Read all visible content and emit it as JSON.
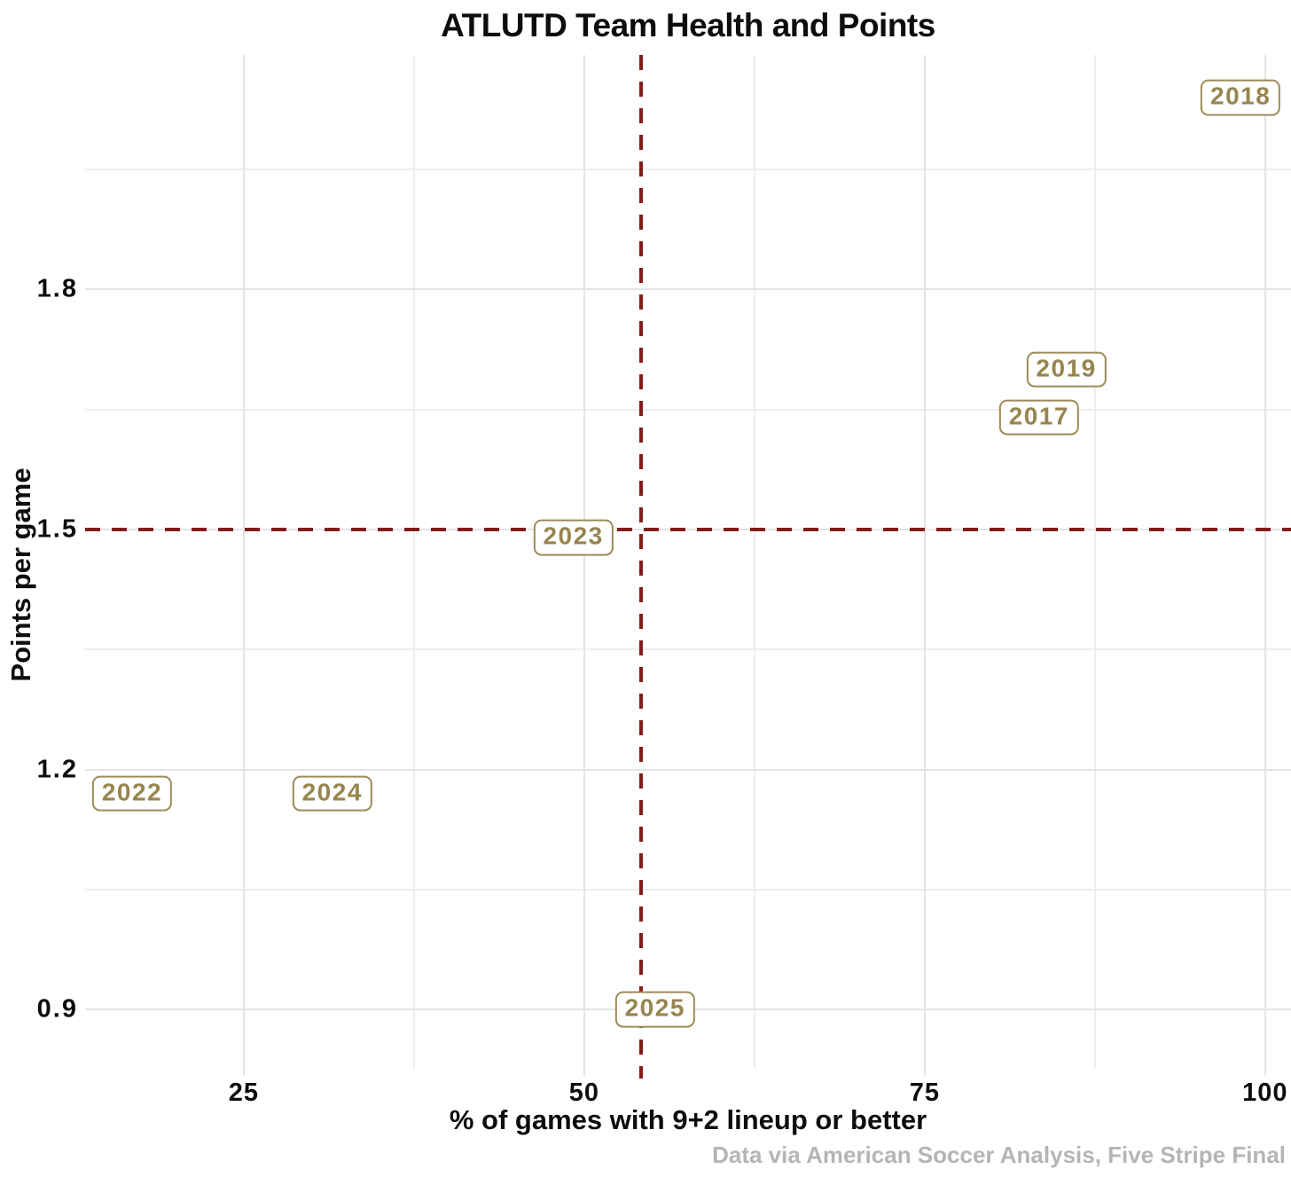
{
  "chart_data": {
    "type": "scatter",
    "title": "ATLUTD Team Health and Points",
    "xlabel": "% of games with 9+2 lineup or better",
    "ylabel": "Points per game",
    "caption": "Data via American Soccer Analysis, Five Stripe Final",
    "xlim": [
      13.35,
      101.9
    ],
    "ylim": [
      0.826,
      2.093
    ],
    "x_ticks": {
      "values": [
        25,
        50,
        75,
        100
      ],
      "labels": [
        "25",
        "50",
        "75",
        "100"
      ]
    },
    "y_ticks": {
      "values": [
        0.9,
        1.2,
        1.5,
        1.8
      ],
      "labels": [
        "0.9",
        "1.2",
        "1.5",
        "1.8"
      ]
    },
    "x_minor_gridlines": [
      37.5,
      62.5,
      87.5
    ],
    "y_minor_gridlines": [
      1.05,
      1.35,
      1.65,
      1.95
    ],
    "grid": "on",
    "legend": "none",
    "reference_lines": {
      "x": 54.2,
      "y": 1.5,
      "style": "dashed"
    },
    "points": [
      {
        "label": "2017",
        "x": 83.4,
        "y": 1.64
      },
      {
        "label": "2018",
        "x": 98.2,
        "y": 2.04
      },
      {
        "label": "2019",
        "x": 85.4,
        "y": 1.7
      },
      {
        "label": "2022",
        "x": 16.8,
        "y": 1.17
      },
      {
        "label": "2023",
        "x": 49.2,
        "y": 1.49
      },
      {
        "label": "2024",
        "x": 31.5,
        "y": 1.17
      },
      {
        "label": "2025",
        "x": 55.2,
        "y": 0.9
      }
    ],
    "colors": {
      "label_gold_border": "#9d8b58",
      "label_gold_text": "#97854f",
      "reference_red": "#841c1c",
      "grid_major": "#e4e4e4",
      "grid_minor": "#eeeeee",
      "text": "#0d0d0d",
      "caption_gray": "#b5b5b5"
    }
  }
}
